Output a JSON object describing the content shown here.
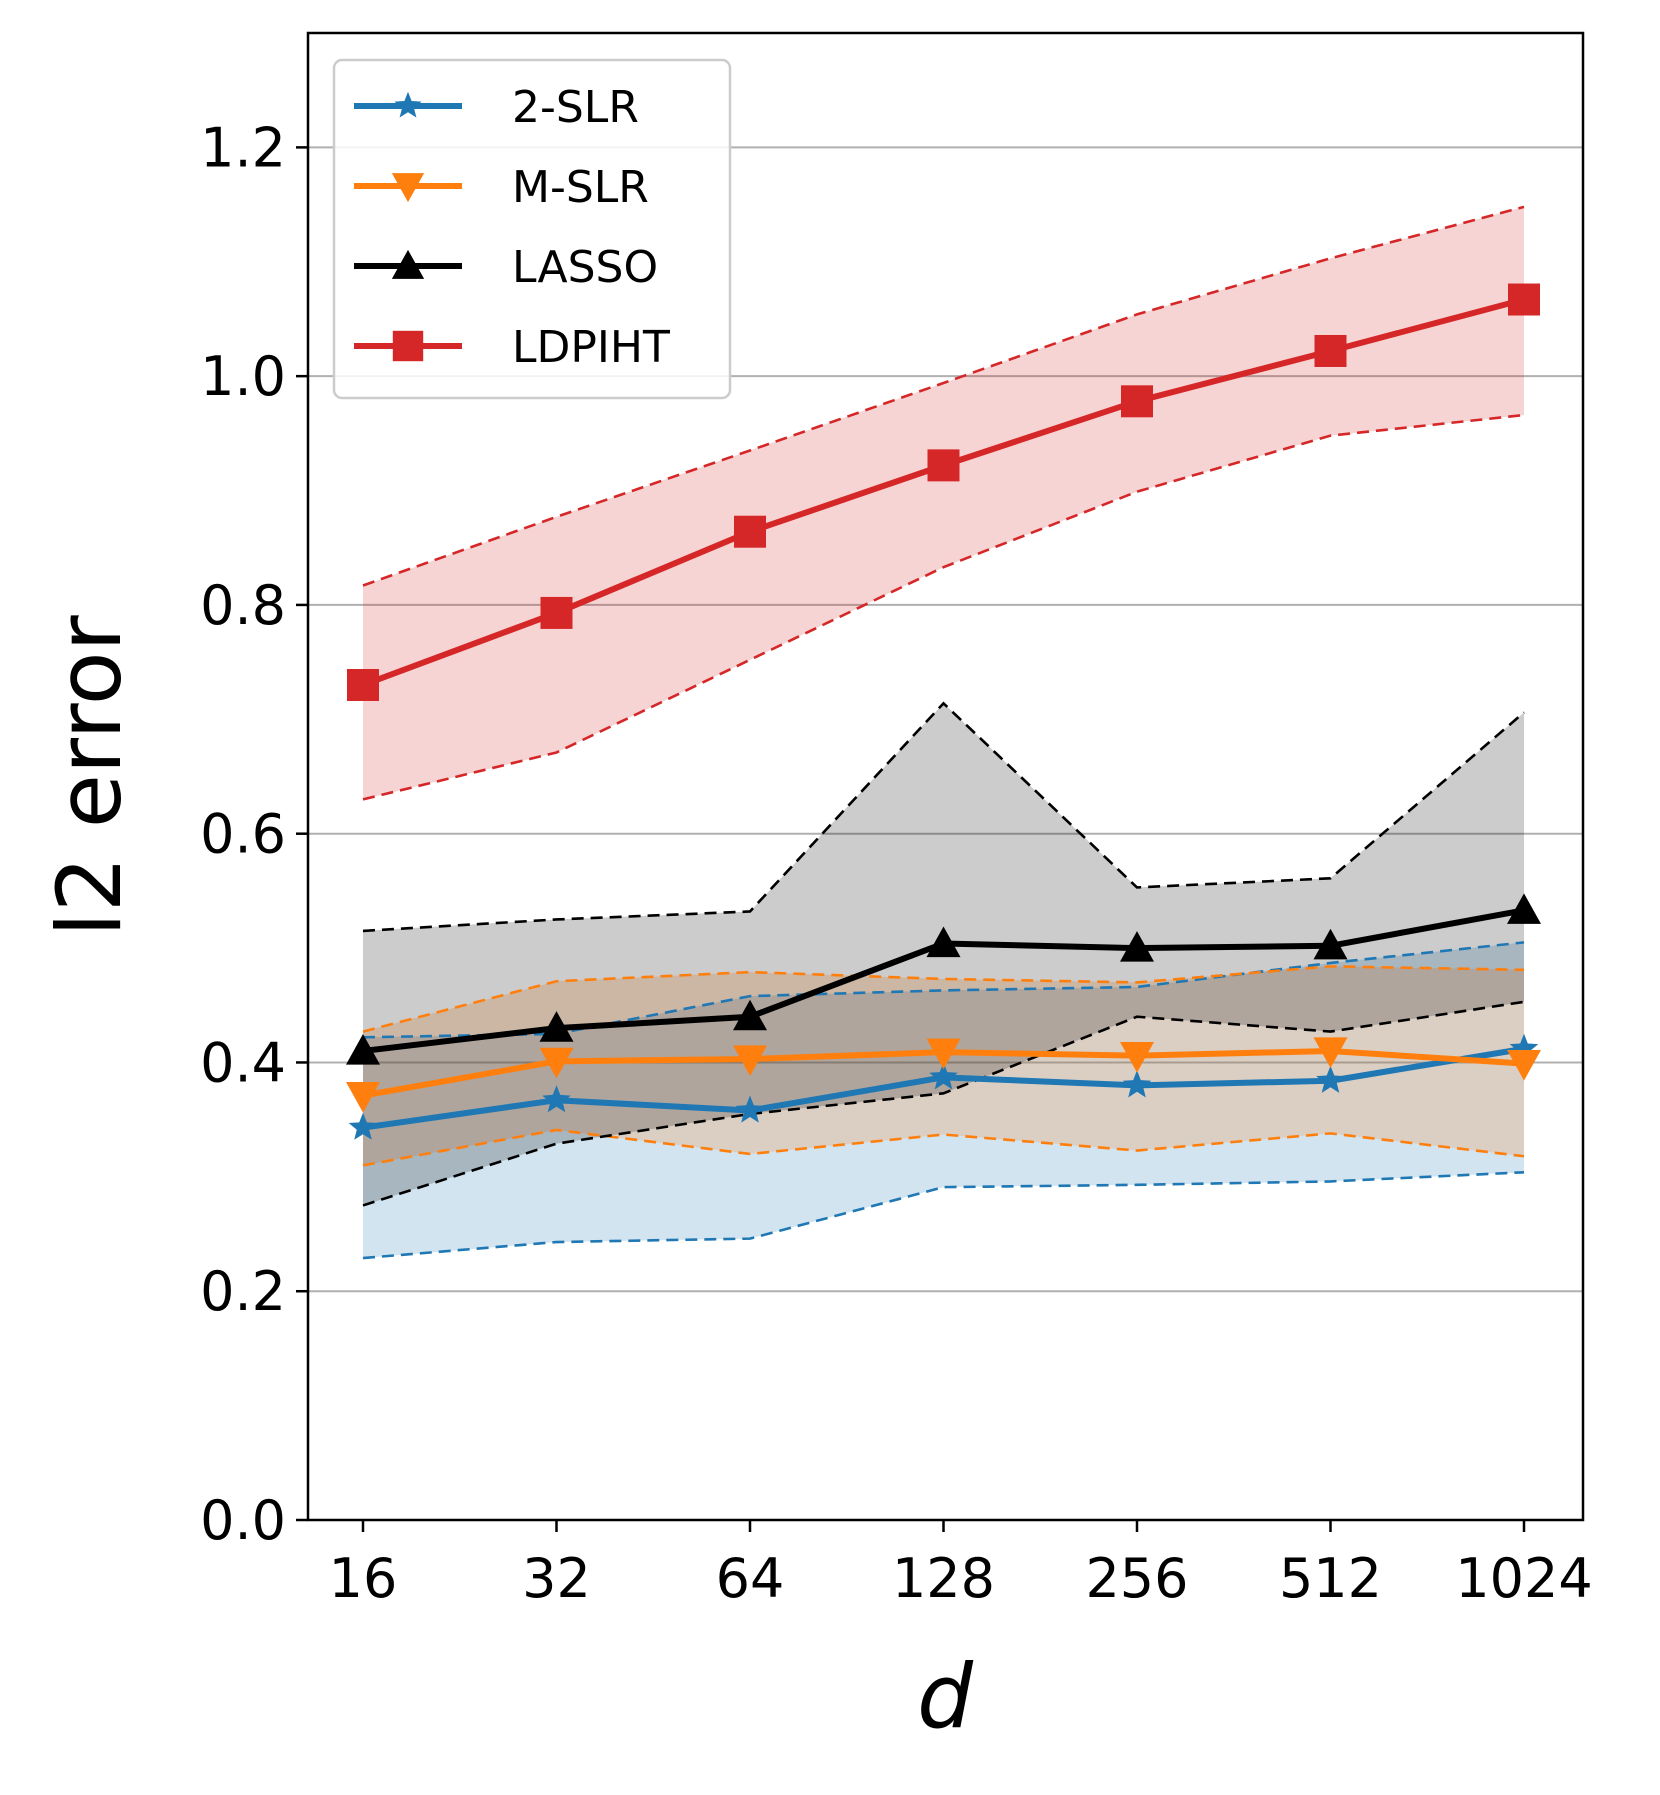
{
  "chart_data": {
    "type": "line",
    "x": [
      "16",
      "32",
      "64",
      "128",
      "256",
      "512",
      "1024"
    ],
    "xlabel": "d",
    "ylabel": "l2 error",
    "ylim": [
      0.0,
      1.3
    ],
    "yticks": [
      "0.0",
      "0.2",
      "0.4",
      "0.6",
      "0.8",
      "1.0",
      "1.2"
    ],
    "grid": "y-major",
    "legend_position": "top-left",
    "series": [
      {
        "name": "2-SLR",
        "color": "#1f77b4",
        "marker": "star",
        "values": [
          0.343,
          0.367,
          0.358,
          0.387,
          0.38,
          0.384,
          0.412
        ],
        "upper": [
          0.422,
          0.425,
          0.458,
          0.463,
          0.466,
          0.487,
          0.505
        ],
        "lower": [
          0.229,
          0.243,
          0.246,
          0.291,
          0.293,
          0.296,
          0.304
        ]
      },
      {
        "name": "M-SLR",
        "color": "#ff7f0e",
        "marker": "triangle-down",
        "values": [
          0.371,
          0.401,
          0.403,
          0.409,
          0.406,
          0.41,
          0.399
        ],
        "upper": [
          0.427,
          0.471,
          0.479,
          0.473,
          0.47,
          0.484,
          0.481
        ],
        "lower": [
          0.31,
          0.341,
          0.32,
          0.337,
          0.323,
          0.338,
          0.318
        ]
      },
      {
        "name": "LASSO",
        "color": "#000000",
        "marker": "triangle-up",
        "values": [
          0.41,
          0.43,
          0.44,
          0.504,
          0.5,
          0.502,
          0.533
        ],
        "upper": [
          0.515,
          0.525,
          0.532,
          0.714,
          0.553,
          0.561,
          0.706
        ],
        "lower": [
          0.275,
          0.329,
          0.355,
          0.373,
          0.44,
          0.427,
          0.453
        ]
      },
      {
        "name": "LDPIHT",
        "color": "#d62728",
        "marker": "square",
        "values": [
          0.73,
          0.793,
          0.864,
          0.922,
          0.978,
          1.022,
          1.067
        ],
        "upper": [
          0.817,
          0.877,
          0.935,
          0.994,
          1.054,
          1.103,
          1.148
        ],
        "lower": [
          0.63,
          0.671,
          0.752,
          0.833,
          0.899,
          0.948,
          0.966
        ]
      }
    ]
  }
}
